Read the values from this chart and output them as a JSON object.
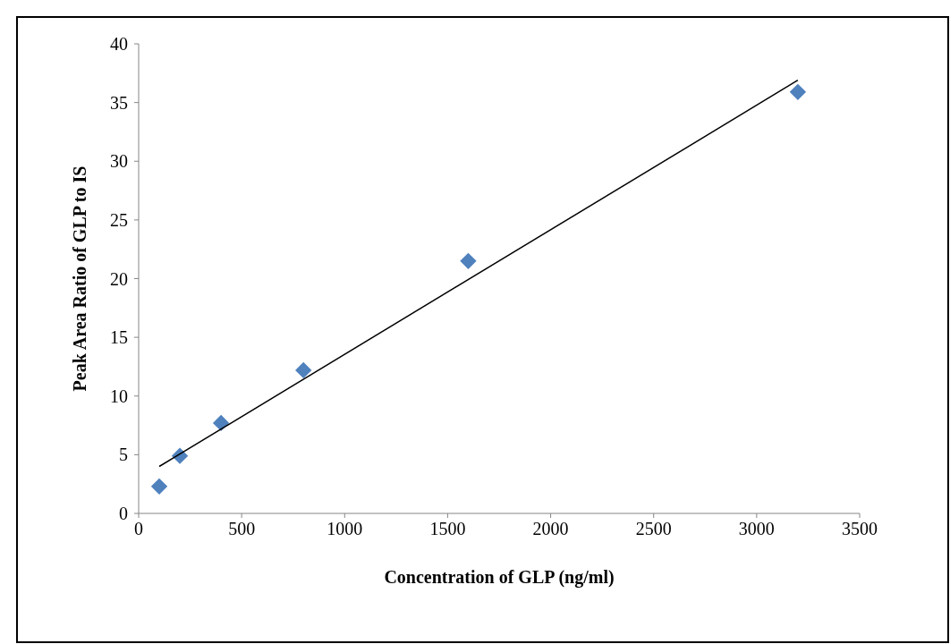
{
  "chart_data": {
    "type": "scatter",
    "xlabel": "Concentration of GLP (ng/ml)",
    "ylabel": "Peak Area Ratio of GLP to IS",
    "xlim": [
      0,
      3500
    ],
    "xticks": [
      0,
      500,
      1000,
      1500,
      2000,
      2500,
      3000,
      3500
    ],
    "ylim": [
      0,
      40
    ],
    "yticks": [
      0,
      5,
      10,
      15,
      20,
      25,
      30,
      35,
      40
    ],
    "grid": false,
    "marker": "diamond",
    "series": [
      {
        "color": "#4f81bd",
        "x": [
          100,
          200,
          400,
          800,
          1600,
          3200
        ],
        "values": [
          2.3,
          4.9,
          7.7,
          12.2,
          21.5,
          35.9
        ]
      },
      {
        "type": "line",
        "color": "#000000",
        "marker": "none",
        "line_style": "solid",
        "x": [
          100,
          3200
        ],
        "values": [
          4.0,
          36.9
        ]
      }
    ]
  }
}
